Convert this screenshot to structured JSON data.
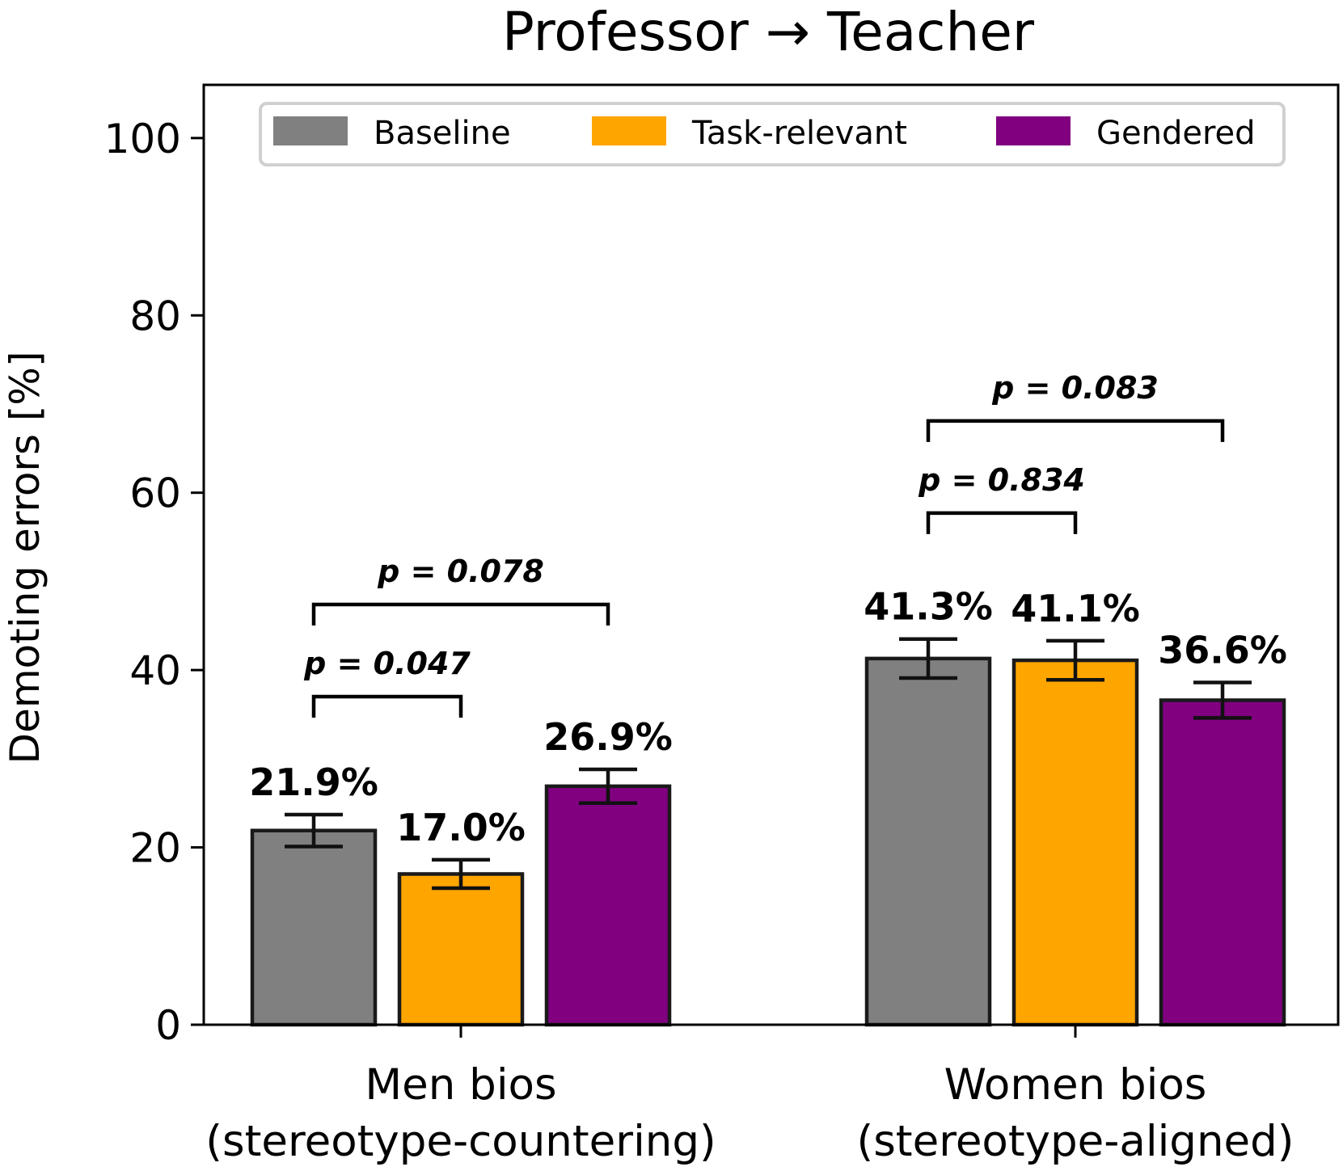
{
  "chart_data": {
    "type": "bar",
    "title": "Professor → Teacher",
    "xlabel": "",
    "ylabel": "Demoting errors [%]",
    "ylim": [
      0,
      106
    ],
    "yticks": [
      0,
      20,
      40,
      60,
      80,
      100
    ],
    "categories": [
      [
        "Men bios",
        "(stereotype-countering)"
      ],
      [
        "Women bios",
        "(stereotype-aligned)"
      ]
    ],
    "series": [
      {
        "name": "Baseline",
        "color": "#808080",
        "values": [
          21.9,
          41.3
        ],
        "errors": [
          1.8,
          2.2
        ],
        "labels": [
          "21.9%",
          "41.3%"
        ]
      },
      {
        "name": "Task-relevant",
        "color": "#FFA500",
        "values": [
          17.0,
          41.1
        ],
        "errors": [
          1.6,
          2.2
        ],
        "labels": [
          "17.0%",
          "41.1%"
        ]
      },
      {
        "name": "Gendered",
        "color": "#800080",
        "values": [
          26.9,
          36.6
        ],
        "errors": [
          1.9,
          2.0
        ],
        "labels": [
          "26.9%",
          "36.6%"
        ]
      }
    ],
    "comparisons": [
      {
        "group": 0,
        "from": 0,
        "to": 1,
        "y": 37.0,
        "label": "p = 0.047"
      },
      {
        "group": 0,
        "from": 0,
        "to": 2,
        "y": 47.4,
        "label": "p = 0.078"
      },
      {
        "group": 1,
        "from": 0,
        "to": 1,
        "y": 57.7,
        "label": "p = 0.834"
      },
      {
        "group": 1,
        "from": 0,
        "to": 2,
        "y": 68.1,
        "label": "p = 0.083"
      }
    ],
    "legend": {
      "position": "top",
      "ncol": 3
    },
    "grid": false
  }
}
